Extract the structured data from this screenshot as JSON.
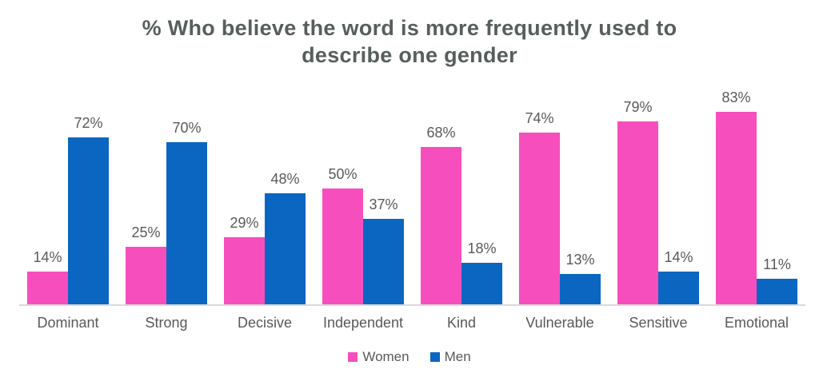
{
  "title": "% Who believe the word is more frequently used to describe one gender",
  "colors": {
    "women": "#f74ebd",
    "men": "#0b66c2",
    "title_text": "#575f5c",
    "label_text": "#595959",
    "axis_line": "#d9d9d9",
    "background": "#ffffff"
  },
  "chart_data": {
    "type": "bar",
    "title": "% Who believe the word is more frequently used to describe one gender",
    "categories": [
      "Dominant",
      "Strong",
      "Decisive",
      "Independent",
      "Kind",
      "Vulnerable",
      "Sensitive",
      "Emotional"
    ],
    "series": [
      {
        "name": "Women",
        "color": "#f74ebd",
        "values": [
          14,
          25,
          29,
          50,
          68,
          74,
          79,
          83
        ]
      },
      {
        "name": "Men",
        "color": "#0b66c2",
        "values": [
          72,
          70,
          48,
          37,
          18,
          13,
          14,
          11
        ]
      }
    ],
    "value_suffix": "%",
    "data_labels": true,
    "xlabel": "",
    "ylabel": "",
    "ylim": [
      0,
      100
    ],
    "grid": false,
    "axis_ticks": "none",
    "legend_position": "bottom"
  }
}
